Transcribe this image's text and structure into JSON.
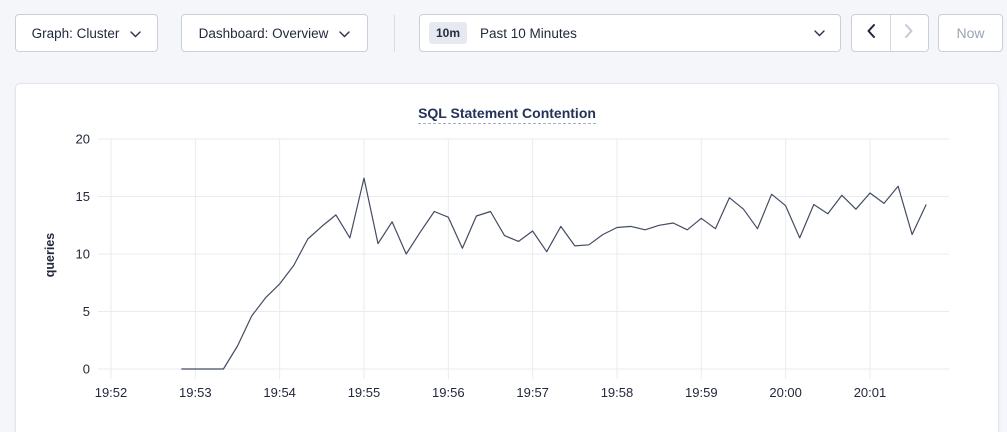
{
  "toolbar": {
    "graph_selector": {
      "text": "Graph: Cluster"
    },
    "dashboard_selector": {
      "text": "Dashboard: Overview"
    },
    "time_window": {
      "badge": "10m",
      "selected": "Past 10 Minutes"
    },
    "now_button": "Now"
  },
  "panel": {
    "title": "SQL Statement Contention"
  },
  "chart_data": {
    "type": "line",
    "title": "SQL Statement Contention",
    "xlabel": "",
    "ylabel": "queries",
    "ylim": [
      0,
      20
    ],
    "yticks": [
      0,
      5,
      10,
      15,
      20
    ],
    "xticks": [
      "19:52",
      "19:53",
      "19:54",
      "19:55",
      "19:56",
      "19:57",
      "19:58",
      "19:59",
      "20:00",
      "20:01"
    ],
    "grid": true,
    "legend": "none",
    "line_color": "#434c63",
    "series": [
      {
        "name": "queries",
        "start_time": "19:52:50",
        "x_start_offset_seconds": 50,
        "interval_seconds": 10,
        "values": [
          0,
          0,
          0,
          0,
          2,
          4.6,
          6.2,
          7.4,
          9,
          11.3,
          12.4,
          13.4,
          11.4,
          16.6,
          10.9,
          12.8,
          10,
          11.9,
          13.7,
          13.2,
          10.5,
          13.3,
          13.7,
          11.6,
          11.1,
          12,
          10.2,
          12.4,
          10.7,
          10.8,
          11.7,
          12.3,
          12.4,
          12.1,
          12.5,
          12.7,
          12.1,
          13.1,
          12.2,
          14.9,
          13.9,
          12.2,
          15.2,
          14.2,
          11.4,
          14.3,
          13.5,
          15.1,
          13.9,
          15.3,
          14.4,
          15.9,
          11.7,
          14.3
        ]
      }
    ]
  }
}
